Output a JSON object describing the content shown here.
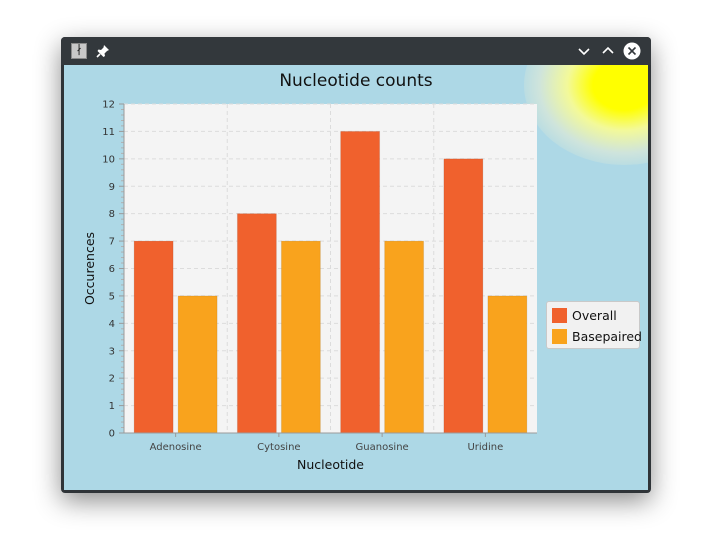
{
  "window": {
    "app_icon": "app-icon",
    "buttons": [
      "pin-icon",
      "minimize-icon",
      "maximize-icon",
      "close-icon"
    ]
  },
  "colors": {
    "background": "#add8e6",
    "plot_background": "#f4f4f4",
    "overall": "#f0612d",
    "basepaired": "#f9a31d"
  },
  "chart_data": {
    "type": "bar",
    "title": "Nucleotide counts",
    "xlabel": "Nucleotide",
    "ylabel": "Occurences",
    "categories": [
      "Adenosine",
      "Cytosine",
      "Guanosine",
      "Uridine"
    ],
    "series": [
      {
        "name": "Overall",
        "values": [
          7,
          8,
          11,
          10
        ],
        "color": "#f0612d"
      },
      {
        "name": "Basepaired",
        "values": [
          5,
          7,
          7,
          5
        ],
        "color": "#f9a31d"
      }
    ],
    "ylim": [
      0,
      12
    ],
    "yticks": [
      0,
      1,
      2,
      3,
      4,
      5,
      6,
      7,
      8,
      9,
      10,
      11,
      12
    ],
    "grid": true,
    "legend": "right"
  }
}
